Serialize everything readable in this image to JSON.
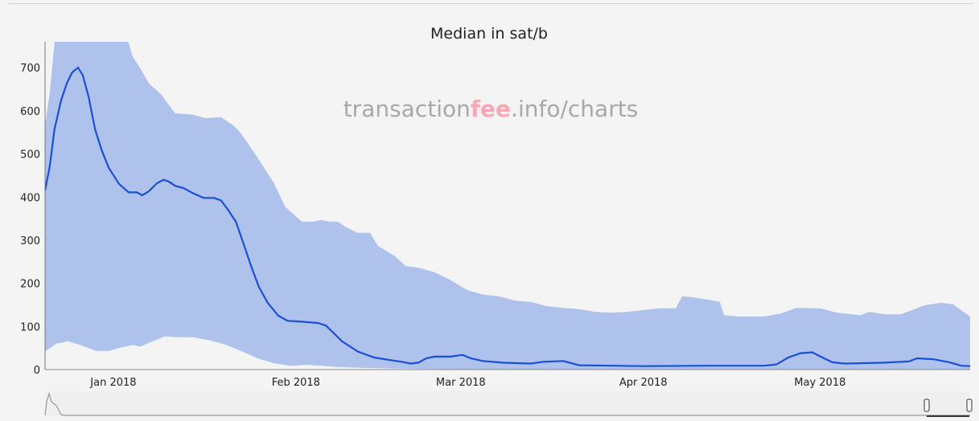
{
  "chart_data": {
    "type": "area",
    "title": "Median in sat/b",
    "watermark": {
      "prefix": "transaction",
      "highlight": "fee",
      "suffix": ".info/charts"
    },
    "x_unit": "days since 2018-01-01",
    "xlim": [
      -11.6,
      145.5
    ],
    "ylim": [
      0,
      760
    ],
    "y_ticks": [
      0,
      100,
      200,
      300,
      400,
      500,
      600,
      700
    ],
    "x_ticks": [
      {
        "day": 0,
        "label": "Jan 2018"
      },
      {
        "day": 31,
        "label": "Feb 2018"
      },
      {
        "day": 59,
        "label": "Mar 2018"
      },
      {
        "day": 90,
        "label": "Apr 2018"
      },
      {
        "day": 120,
        "label": "May 2018"
      }
    ],
    "colors": {
      "band": "#aec2ec",
      "median": "#1a4fd6",
      "watermark": "#a8a8a8",
      "watermark_highlight": "#f7a8b4"
    },
    "series": [
      {
        "name": "median",
        "points": [
          [
            -11.6,
            415
          ],
          [
            -10.8,
            472
          ],
          [
            -10,
            557
          ],
          [
            -8.9,
            623
          ],
          [
            -7.9,
            664
          ],
          [
            -7,
            689
          ],
          [
            -6,
            700
          ],
          [
            -5.2,
            683
          ],
          [
            -4.2,
            632
          ],
          [
            -3.1,
            557
          ],
          [
            -2,
            509
          ],
          [
            -0.8,
            468
          ],
          [
            1,
            430
          ],
          [
            2.6,
            411
          ],
          [
            4,
            411
          ],
          [
            4.9,
            404
          ],
          [
            6,
            413
          ],
          [
            7.4,
            432
          ],
          [
            8.5,
            440
          ],
          [
            9.4,
            436
          ],
          [
            10.5,
            426
          ],
          [
            11.9,
            421
          ],
          [
            13.5,
            409
          ],
          [
            15.3,
            398
          ],
          [
            17.1,
            398
          ],
          [
            18.3,
            392
          ],
          [
            19.4,
            372
          ],
          [
            20.8,
            343
          ],
          [
            22.1,
            292
          ],
          [
            23.4,
            240
          ],
          [
            24.7,
            192
          ],
          [
            26.2,
            155
          ],
          [
            28,
            125
          ],
          [
            29.6,
            113
          ],
          [
            32,
            111
          ],
          [
            34.7,
            108
          ],
          [
            36.1,
            102
          ],
          [
            37.4,
            85
          ],
          [
            38.8,
            66
          ],
          [
            41.5,
            42
          ],
          [
            44.3,
            28
          ],
          [
            47,
            22
          ],
          [
            49,
            18
          ],
          [
            50.4,
            14
          ],
          [
            51.8,
            16
          ],
          [
            53.1,
            26
          ],
          [
            54.5,
            30
          ],
          [
            57.2,
            30
          ],
          [
            59.3,
            34
          ],
          [
            60.7,
            26
          ],
          [
            62.7,
            20
          ],
          [
            66.1,
            16
          ],
          [
            70.9,
            14
          ],
          [
            73,
            18
          ],
          [
            76.4,
            20
          ],
          [
            79.1,
            10
          ],
          [
            90,
            8
          ],
          [
            101,
            9
          ],
          [
            110.5,
            9
          ],
          [
            112.6,
            12
          ],
          [
            114.6,
            28
          ],
          [
            116.7,
            38
          ],
          [
            118.7,
            40
          ],
          [
            120.1,
            30
          ],
          [
            122.1,
            17
          ],
          [
            124.2,
            14
          ],
          [
            131,
            16
          ],
          [
            135.1,
            19
          ],
          [
            136.5,
            26
          ],
          [
            139.2,
            24
          ],
          [
            142,
            17
          ],
          [
            144,
            9
          ],
          [
            145.5,
            8
          ]
        ]
      },
      {
        "name": "upper",
        "points": [
          [
            -11.6,
            566
          ],
          [
            -10.8,
            642
          ],
          [
            -9.7,
            800
          ],
          [
            1.6,
            800
          ],
          [
            3.3,
            725
          ],
          [
            4.6,
            698
          ],
          [
            6,
            664
          ],
          [
            8.1,
            638
          ],
          [
            10.5,
            594
          ],
          [
            13.5,
            591
          ],
          [
            15.6,
            583
          ],
          [
            18.3,
            585
          ],
          [
            20.4,
            566
          ],
          [
            21.7,
            547
          ],
          [
            24.5,
            491
          ],
          [
            27.2,
            434
          ],
          [
            29.2,
            377
          ],
          [
            32,
            343
          ],
          [
            34,
            343
          ],
          [
            35.4,
            347
          ],
          [
            36.7,
            343
          ],
          [
            38.1,
            343
          ],
          [
            39.5,
            330
          ],
          [
            41.5,
            317
          ],
          [
            43.6,
            317
          ],
          [
            44.9,
            287
          ],
          [
            47.7,
            264
          ],
          [
            49.7,
            240
          ],
          [
            51.8,
            236
          ],
          [
            54.5,
            226
          ],
          [
            57.2,
            208
          ],
          [
            60,
            185
          ],
          [
            62.7,
            174
          ],
          [
            65.4,
            170
          ],
          [
            68.2,
            160
          ],
          [
            70.9,
            157
          ],
          [
            73.6,
            147
          ],
          [
            76.4,
            143
          ],
          [
            79.1,
            140
          ],
          [
            81.8,
            134
          ],
          [
            84.6,
            132
          ],
          [
            87.3,
            134
          ],
          [
            90,
            138
          ],
          [
            92.8,
            142
          ],
          [
            95.5,
            142
          ],
          [
            96.6,
            170
          ],
          [
            98.2,
            168
          ],
          [
            101,
            162
          ],
          [
            103,
            157
          ],
          [
            103.7,
            126
          ],
          [
            106.4,
            123
          ],
          [
            110.5,
            123
          ],
          [
            113.3,
            130
          ],
          [
            116,
            143
          ],
          [
            120,
            142
          ],
          [
            122.8,
            132
          ],
          [
            126.9,
            126
          ],
          [
            128.3,
            134
          ],
          [
            131,
            128
          ],
          [
            133.7,
            128
          ],
          [
            137.8,
            149
          ],
          [
            140.6,
            155
          ],
          [
            142.6,
            151
          ],
          [
            145.5,
            123
          ]
        ]
      },
      {
        "name": "lower",
        "points": [
          [
            -11.6,
            42
          ],
          [
            -9.7,
            60
          ],
          [
            -7.7,
            66
          ],
          [
            -5.6,
            57
          ],
          [
            -2.9,
            43
          ],
          [
            -0.8,
            43
          ],
          [
            1.2,
            51
          ],
          [
            3.3,
            57
          ],
          [
            4.6,
            53
          ],
          [
            6.7,
            66
          ],
          [
            8.7,
            77
          ],
          [
            10.8,
            75
          ],
          [
            13.5,
            75
          ],
          [
            16.3,
            68
          ],
          [
            19,
            58
          ],
          [
            21.7,
            43
          ],
          [
            24.5,
            26
          ],
          [
            27.2,
            15
          ],
          [
            29.9,
            9
          ],
          [
            32.7,
            11
          ],
          [
            35.4,
            9
          ],
          [
            38.1,
            6
          ],
          [
            42.2,
            4
          ],
          [
            49,
            2
          ],
          [
            62.7,
            0
          ],
          [
            145.5,
            0
          ]
        ]
      }
    ]
  }
}
